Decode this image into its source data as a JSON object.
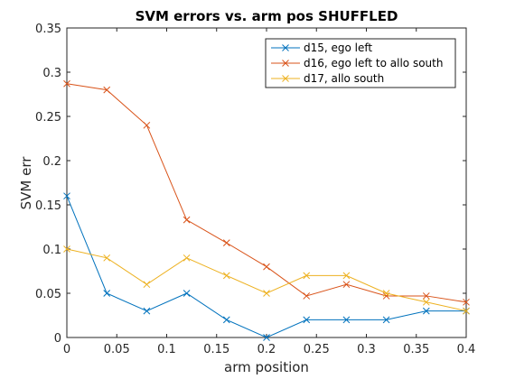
{
  "chart_data": {
    "type": "line",
    "title": "SVM errors vs. arm pos SHUFFLED",
    "xlabel": "arm position",
    "ylabel": "SVM err",
    "xlim": [
      0,
      0.4
    ],
    "ylim": [
      0,
      0.35
    ],
    "xticks": [
      0,
      0.05,
      0.1,
      0.15,
      0.2,
      0.25,
      0.3,
      0.35,
      0.4
    ],
    "xtick_labels": [
      "0",
      "0.05",
      "0.1",
      "0.15",
      "0.2",
      "0.25",
      "0.3",
      "0.35",
      "0.4"
    ],
    "yticks": [
      0,
      0.05,
      0.1,
      0.15,
      0.2,
      0.25,
      0.3,
      0.35
    ],
    "ytick_labels": [
      "0",
      "0.05",
      "0.1",
      "0.15",
      "0.2",
      "0.25",
      "0.3",
      "0.35"
    ],
    "grid": false,
    "legend_position": "top-right",
    "x": [
      0,
      0.04,
      0.08,
      0.12,
      0.16,
      0.2,
      0.24,
      0.28,
      0.32,
      0.36,
      0.4
    ],
    "series": [
      {
        "name": "d15, ego left",
        "color": "#0072BD",
        "marker": "x",
        "values": [
          0.16,
          0.05,
          0.03,
          0.05,
          0.02,
          0.0,
          0.02,
          0.02,
          0.02,
          0.03,
          0.03
        ]
      },
      {
        "name": "d16, ego left to allo south",
        "color": "#D95319",
        "marker": "x",
        "values": [
          0.287,
          0.28,
          0.24,
          0.133,
          0.107,
          0.08,
          0.047,
          0.06,
          0.047,
          0.047,
          0.04
        ]
      },
      {
        "name": "d17, allo south",
        "color": "#EDB120",
        "marker": "x",
        "values": [
          0.1,
          0.09,
          0.06,
          0.09,
          0.07,
          0.05,
          0.07,
          0.07,
          0.05,
          0.04,
          0.03
        ]
      }
    ]
  }
}
